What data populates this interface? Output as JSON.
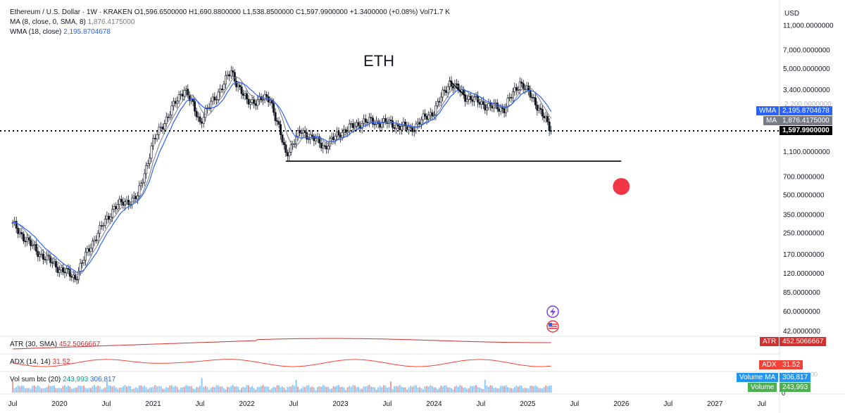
{
  "header": {
    "symbol": "Ethereum / U.S. Dollar · 1W · KRAKEN",
    "open": "O1,596.6500000",
    "high": "H1,690.8800000",
    "low": "L1,538.8500000",
    "close": "C1,597.9900000",
    "change": "+1.3400000 (+0.08%)",
    "volume": "Vol71.7 K",
    "ma_label": "MA (8, close, 0, SMA, 8)",
    "ma_value": "1,876.4175000",
    "wma_label": "WMA (18, close)",
    "wma_value": "2,195.8704678"
  },
  "annotation": {
    "title": "ETH"
  },
  "currency": "USD",
  "price_axis": {
    "ticks": [
      "11,000.0000000",
      "7,000.0000000",
      "5,000.0000000",
      "3,400.0000000",
      "1,100.0000000",
      "700.0000000",
      "500.0000000",
      "350.0000000",
      "250.0000000",
      "170.0000000",
      "120.0000000",
      "85.0000000",
      "60.0000000",
      "42.0000000"
    ],
    "hidden_tick": "2,200.0000000"
  },
  "price_badges": {
    "wma_tag": "WMA",
    "wma_value": "2,195.8704678",
    "ma_tag": "MA",
    "ma_value": "1,876.4175000",
    "last_value": "1,597.9900000"
  },
  "indicators": {
    "atr_label": "ATR (30, SMA)",
    "atr_value": "452.5066667",
    "atr_tag": "ATR",
    "adx_label": "ADX (14, 14)",
    "adx_value": "31.52",
    "adx_tag": "ADX",
    "vol_label": "Vol sum btc (20)",
    "vol_value": "243,993",
    "vol_ma_value": "306,817",
    "vol_ma_tag": "Volume MA",
    "vol_tag": "Volume",
    "vol_axis_faint": "1,000,000",
    "vol_axis_zero": "0"
  },
  "time_axis": [
    "Jul",
    "2020",
    "Jul",
    "2021",
    "Jul",
    "2022",
    "Jul",
    "2023",
    "Jul",
    "2024",
    "Jul",
    "2025",
    "Jul",
    "2026",
    "Jul",
    "2027",
    "Jul"
  ],
  "colors": {
    "wma": "#2962ff",
    "ma": "#787b86",
    "last": "#000000",
    "atr": "#d32f2f",
    "adx": "#f44336",
    "volume": "#4caf50",
    "volume_ma": "#2196f3",
    "candle_up": "#131722",
    "candle_down": "#131722",
    "target_dot": "#f23645"
  },
  "icons": [
    "lightning-event-icon",
    "us-flag-event-icon"
  ],
  "chart_data": {
    "type": "line",
    "title": "ETH",
    "ylabel": "USD",
    "yscale": "log",
    "ylim": [
      37,
      12000
    ],
    "x_range": [
      "2019-06",
      "2027-08"
    ],
    "series": [
      {
        "name": "ETH close (weekly, approx.)",
        "x": [
          "2019-07",
          "2019-10",
          "2020-01",
          "2020-03",
          "2020-05",
          "2020-08",
          "2020-11",
          "2021-01",
          "2021-02",
          "2021-05",
          "2021-07",
          "2021-11",
          "2022-01",
          "2022-04",
          "2022-06",
          "2022-08",
          "2022-11",
          "2023-01",
          "2023-04",
          "2023-07",
          "2023-10",
          "2024-01",
          "2024-03",
          "2024-05",
          "2024-08",
          "2024-10",
          "2024-12",
          "2025-02",
          "2025-04"
        ],
        "values": [
          290,
          180,
          130,
          110,
          200,
          400,
          480,
          1300,
          1700,
          3500,
          1900,
          4700,
          2700,
          2900,
          1050,
          1600,
          1200,
          1550,
          1900,
          1850,
          1650,
          2300,
          3900,
          3000,
          2500,
          2400,
          3900,
          2700,
          1598
        ]
      },
      {
        "name": "MA 8",
        "last": 1876.4175
      },
      {
        "name": "WMA 18",
        "last": 2195.8704678
      }
    ],
    "horizontal_levels": [
      {
        "value": 1597.99,
        "style": "dotted",
        "x_start": "2019-06",
        "x_end": "2027-08"
      },
      {
        "value": 920,
        "style": "solid",
        "x_start": "2022-06",
        "x_end": "2026-01"
      }
    ],
    "trendline": {
      "x": [
        "2024-03",
        "2024-05"
      ],
      "values": [
        4000,
        3000
      ]
    },
    "target_marker": {
      "x": "2026-01",
      "value": 580
    },
    "indicators": {
      "atr": {
        "last": 452.5066667
      },
      "adx": {
        "last": 31.52
      },
      "volume": {
        "last": 243993,
        "ma": 306817
      }
    }
  }
}
